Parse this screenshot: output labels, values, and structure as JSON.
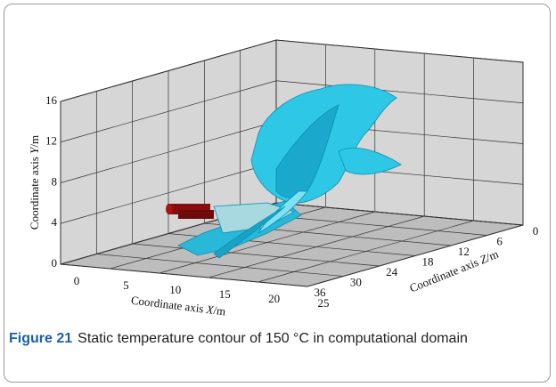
{
  "figure": {
    "axes": {
      "x": {
        "label_main": "Coordinate axis",
        "label_var": "X",
        "label_unit": "/m",
        "ticks": [
          0,
          5,
          10,
          15,
          20,
          25
        ]
      },
      "y": {
        "label_main": "Coordinate axis",
        "label_var": "Y",
        "label_unit": "/m",
        "ticks": [
          0,
          4,
          8,
          12,
          16
        ]
      },
      "z": {
        "label_main": "Coordinate axis",
        "label_var": "Z",
        "label_unit": "/m",
        "ticks": [
          0,
          6,
          12,
          18,
          24,
          30,
          36
        ]
      }
    },
    "caption": {
      "label": "Figure 21",
      "text": "Static temperature contour of 150 °C in computational domain"
    }
  }
}
